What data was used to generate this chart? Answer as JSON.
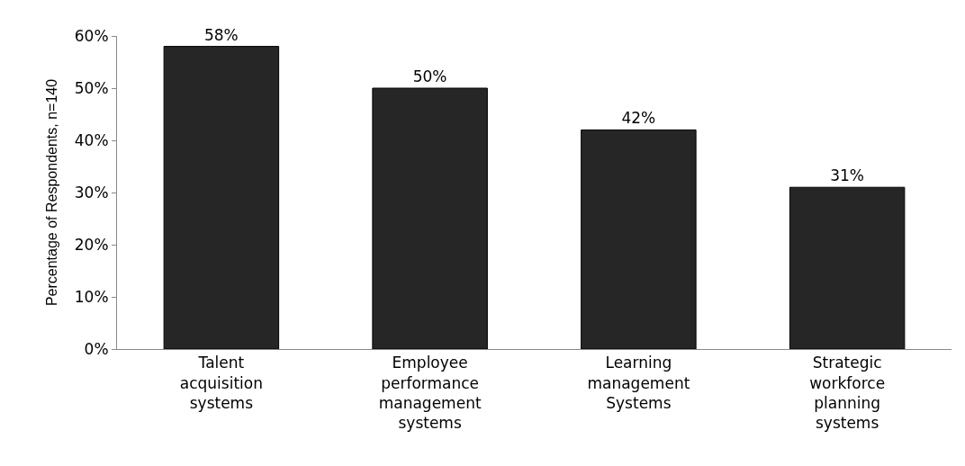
{
  "chart_data": {
    "type": "bar",
    "ylabel": "Percentage of Respondents, n=140",
    "categories": [
      "Talent acquisition systems",
      "Employee performance management systems",
      "Learning management Systems",
      "Strategic workforce planning systems"
    ],
    "values": [
      58,
      50,
      42,
      31
    ],
    "value_labels": [
      "58%",
      "50%",
      "42%",
      "31%"
    ],
    "color": "#262626",
    "ylim": [
      0,
      60
    ],
    "yticks": [
      {
        "value": 0,
        "label": "0%"
      },
      {
        "value": 10,
        "label": "10%"
      },
      {
        "value": 20,
        "label": "20%"
      },
      {
        "value": 30,
        "label": "30%"
      },
      {
        "value": 40,
        "label": "40%"
      },
      {
        "value": 50,
        "label": "50%"
      },
      {
        "value": 60,
        "label": "60%"
      }
    ],
    "legend": false
  }
}
